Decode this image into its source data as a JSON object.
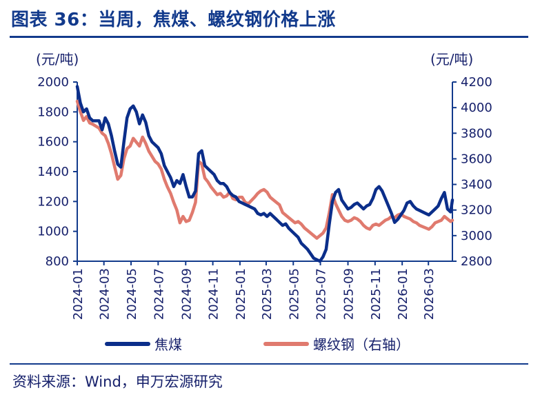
{
  "title": "图表 36：当周，焦煤、螺纹钢价格上涨",
  "units": {
    "left": "(元/吨)",
    "right": "(元/吨)"
  },
  "source": "资料来源：Wind，申万宏源研究",
  "colors": {
    "coking_coal": "#0b2e8a",
    "rebar": "#e07a6e",
    "axis": "#123a8c"
  },
  "chart_data": {
    "type": "line",
    "title": "图表 36：当周，焦煤、螺纹钢价格上涨",
    "x_ticks": [
      "2024-01",
      "2024-03",
      "2024-05",
      "2024-07",
      "2024-09",
      "2024-11",
      "2025-01",
      "2025-03",
      "2025-05",
      "2025-07",
      "2025-09",
      "2025-11",
      "2026-01",
      "2026-03"
    ],
    "x_range": [
      "2024-01-01",
      "2026-04-24"
    ],
    "y_left": {
      "ticks": [
        800,
        1000,
        1200,
        1400,
        1600,
        1800,
        2000
      ],
      "range": [
        800,
        2000
      ],
      "unit": "(元/吨)"
    },
    "y_right": {
      "ticks": [
        2800,
        3000,
        3200,
        3400,
        3600,
        3800,
        4000,
        4200
      ],
      "range": [
        2800,
        4200
      ],
      "unit": "(元/吨)"
    },
    "legend_position": "bottom",
    "grid": false,
    "series": [
      {
        "name": "焦煤",
        "axis": "left",
        "points": [
          [
            "2024-01-01",
            1970
          ],
          [
            "2024-01-08",
            1860
          ],
          [
            "2024-01-15",
            1800
          ],
          [
            "2024-01-22",
            1820
          ],
          [
            "2024-01-29",
            1760
          ],
          [
            "2024-02-05",
            1740
          ],
          [
            "2024-02-19",
            1740
          ],
          [
            "2024-02-26",
            1680
          ],
          [
            "2024-03-04",
            1760
          ],
          [
            "2024-03-11",
            1720
          ],
          [
            "2024-03-18",
            1640
          ],
          [
            "2024-03-25",
            1540
          ],
          [
            "2024-04-01",
            1450
          ],
          [
            "2024-04-08",
            1430
          ],
          [
            "2024-04-15",
            1600
          ],
          [
            "2024-04-22",
            1760
          ],
          [
            "2024-04-29",
            1820
          ],
          [
            "2024-05-06",
            1840
          ],
          [
            "2024-05-13",
            1800
          ],
          [
            "2024-05-20",
            1720
          ],
          [
            "2024-05-27",
            1780
          ],
          [
            "2024-06-03",
            1730
          ],
          [
            "2024-06-10",
            1640
          ],
          [
            "2024-06-17",
            1600
          ],
          [
            "2024-06-24",
            1580
          ],
          [
            "2024-07-01",
            1560
          ],
          [
            "2024-07-08",
            1520
          ],
          [
            "2024-07-15",
            1440
          ],
          [
            "2024-07-22",
            1400
          ],
          [
            "2024-07-29",
            1360
          ],
          [
            "2024-08-05",
            1300
          ],
          [
            "2024-08-12",
            1340
          ],
          [
            "2024-08-19",
            1320
          ],
          [
            "2024-08-26",
            1380
          ],
          [
            "2024-09-02",
            1300
          ],
          [
            "2024-09-09",
            1230
          ],
          [
            "2024-09-16",
            1230
          ],
          [
            "2024-09-23",
            1270
          ],
          [
            "2024-09-30",
            1520
          ],
          [
            "2024-10-07",
            1540
          ],
          [
            "2024-10-14",
            1440
          ],
          [
            "2024-10-21",
            1420
          ],
          [
            "2024-10-28",
            1400
          ],
          [
            "2024-11-04",
            1380
          ],
          [
            "2024-11-11",
            1340
          ],
          [
            "2024-11-18",
            1320
          ],
          [
            "2024-11-25",
            1320
          ],
          [
            "2024-12-02",
            1300
          ],
          [
            "2024-12-09",
            1260
          ],
          [
            "2024-12-16",
            1240
          ],
          [
            "2024-12-23",
            1230
          ],
          [
            "2024-12-30",
            1200
          ],
          [
            "2025-01-06",
            1190
          ],
          [
            "2025-01-13",
            1180
          ],
          [
            "2025-01-20",
            1170
          ],
          [
            "2025-02-03",
            1150
          ],
          [
            "2025-02-10",
            1120
          ],
          [
            "2025-02-17",
            1110
          ],
          [
            "2025-02-24",
            1120
          ],
          [
            "2025-03-03",
            1100
          ],
          [
            "2025-03-10",
            1120
          ],
          [
            "2025-03-17",
            1100
          ],
          [
            "2025-03-24",
            1080
          ],
          [
            "2025-03-31",
            1060
          ],
          [
            "2025-04-07",
            1040
          ],
          [
            "2025-04-14",
            1050
          ],
          [
            "2025-04-21",
            1020
          ],
          [
            "2025-04-28",
            1000
          ],
          [
            "2025-05-05",
            980
          ],
          [
            "2025-05-12",
            960
          ],
          [
            "2025-05-19",
            920
          ],
          [
            "2025-05-26",
            900
          ],
          [
            "2025-06-02",
            880
          ],
          [
            "2025-06-09",
            850
          ],
          [
            "2025-06-16",
            820
          ],
          [
            "2025-06-23",
            810
          ],
          [
            "2025-06-30",
            800
          ],
          [
            "2025-07-07",
            830
          ],
          [
            "2025-07-14",
            880
          ],
          [
            "2025-07-21",
            1050
          ],
          [
            "2025-07-28",
            1200
          ],
          [
            "2025-08-04",
            1260
          ],
          [
            "2025-08-11",
            1280
          ],
          [
            "2025-08-18",
            1210
          ],
          [
            "2025-08-25",
            1180
          ],
          [
            "2025-09-01",
            1150
          ],
          [
            "2025-09-08",
            1160
          ],
          [
            "2025-09-15",
            1180
          ],
          [
            "2025-09-22",
            1190
          ],
          [
            "2025-09-29",
            1170
          ],
          [
            "2025-10-06",
            1150
          ],
          [
            "2025-10-13",
            1170
          ],
          [
            "2025-10-20",
            1180
          ],
          [
            "2025-10-27",
            1220
          ],
          [
            "2025-11-03",
            1280
          ],
          [
            "2025-11-10",
            1300
          ],
          [
            "2025-11-17",
            1270
          ],
          [
            "2025-11-24",
            1220
          ],
          [
            "2025-12-01",
            1170
          ],
          [
            "2025-12-08",
            1120
          ],
          [
            "2025-12-15",
            1060
          ],
          [
            "2025-12-22",
            1080
          ],
          [
            "2025-12-29",
            1110
          ],
          [
            "2026-01-05",
            1140
          ],
          [
            "2026-01-12",
            1190
          ],
          [
            "2026-01-19",
            1200
          ],
          [
            "2026-01-26",
            1170
          ],
          [
            "2026-02-02",
            1150
          ],
          [
            "2026-02-09",
            1140
          ],
          [
            "2026-02-23",
            1120
          ],
          [
            "2026-03-02",
            1110
          ],
          [
            "2026-03-09",
            1130
          ],
          [
            "2026-03-16",
            1150
          ],
          [
            "2026-03-23",
            1170
          ],
          [
            "2026-03-30",
            1220
          ],
          [
            "2026-04-06",
            1260
          ],
          [
            "2026-04-13",
            1150
          ],
          [
            "2026-04-20",
            1130
          ],
          [
            "2026-04-24",
            1210
          ]
        ]
      },
      {
        "name": "螺纹钢（右轴）",
        "axis": "right",
        "points": [
          [
            "2024-01-01",
            4050
          ],
          [
            "2024-01-08",
            3970
          ],
          [
            "2024-01-15",
            3900
          ],
          [
            "2024-01-22",
            3930
          ],
          [
            "2024-01-29",
            3880
          ],
          [
            "2024-02-05",
            3870
          ],
          [
            "2024-02-19",
            3840
          ],
          [
            "2024-02-26",
            3800
          ],
          [
            "2024-03-04",
            3780
          ],
          [
            "2024-03-11",
            3720
          ],
          [
            "2024-03-18",
            3640
          ],
          [
            "2024-03-25",
            3540
          ],
          [
            "2024-04-01",
            3440
          ],
          [
            "2024-04-08",
            3470
          ],
          [
            "2024-04-15",
            3600
          ],
          [
            "2024-04-22",
            3680
          ],
          [
            "2024-04-29",
            3700
          ],
          [
            "2024-05-06",
            3760
          ],
          [
            "2024-05-13",
            3730
          ],
          [
            "2024-05-20",
            3700
          ],
          [
            "2024-05-27",
            3770
          ],
          [
            "2024-06-03",
            3720
          ],
          [
            "2024-06-10",
            3660
          ],
          [
            "2024-06-17",
            3620
          ],
          [
            "2024-06-24",
            3580
          ],
          [
            "2024-07-01",
            3560
          ],
          [
            "2024-07-08",
            3520
          ],
          [
            "2024-07-15",
            3440
          ],
          [
            "2024-07-22",
            3380
          ],
          [
            "2024-07-29",
            3330
          ],
          [
            "2024-08-05",
            3260
          ],
          [
            "2024-08-12",
            3200
          ],
          [
            "2024-08-19",
            3100
          ],
          [
            "2024-08-26",
            3150
          ],
          [
            "2024-09-02",
            3110
          ],
          [
            "2024-09-09",
            3120
          ],
          [
            "2024-09-16",
            3180
          ],
          [
            "2024-09-23",
            3260
          ],
          [
            "2024-09-30",
            3580
          ],
          [
            "2024-10-07",
            3560
          ],
          [
            "2024-10-14",
            3450
          ],
          [
            "2024-10-21",
            3420
          ],
          [
            "2024-10-28",
            3380
          ],
          [
            "2024-11-04",
            3350
          ],
          [
            "2024-11-11",
            3320
          ],
          [
            "2024-11-18",
            3330
          ],
          [
            "2024-11-25",
            3300
          ],
          [
            "2024-12-02",
            3310
          ],
          [
            "2024-12-09",
            3340
          ],
          [
            "2024-12-16",
            3290
          ],
          [
            "2024-12-23",
            3280
          ],
          [
            "2024-12-30",
            3300
          ],
          [
            "2025-01-06",
            3300
          ],
          [
            "2025-01-13",
            3260
          ],
          [
            "2025-01-20",
            3250
          ],
          [
            "2025-02-03",
            3300
          ],
          [
            "2025-02-10",
            3330
          ],
          [
            "2025-02-17",
            3350
          ],
          [
            "2025-02-24",
            3360
          ],
          [
            "2025-03-03",
            3340
          ],
          [
            "2025-03-10",
            3300
          ],
          [
            "2025-03-17",
            3280
          ],
          [
            "2025-03-24",
            3260
          ],
          [
            "2025-03-31",
            3240
          ],
          [
            "2025-04-07",
            3180
          ],
          [
            "2025-04-14",
            3160
          ],
          [
            "2025-04-21",
            3140
          ],
          [
            "2025-04-28",
            3120
          ],
          [
            "2025-05-05",
            3100
          ],
          [
            "2025-05-12",
            3110
          ],
          [
            "2025-05-19",
            3090
          ],
          [
            "2025-05-26",
            3060
          ],
          [
            "2025-06-02",
            3040
          ],
          [
            "2025-06-09",
            3020
          ],
          [
            "2025-06-16",
            3000
          ],
          [
            "2025-06-23",
            2980
          ],
          [
            "2025-06-30",
            3000
          ],
          [
            "2025-07-07",
            3020
          ],
          [
            "2025-07-14",
            3060
          ],
          [
            "2025-07-21",
            3180
          ],
          [
            "2025-07-28",
            3320
          ],
          [
            "2025-08-04",
            3250
          ],
          [
            "2025-08-11",
            3200
          ],
          [
            "2025-08-18",
            3150
          ],
          [
            "2025-08-25",
            3120
          ],
          [
            "2025-09-01",
            3110
          ],
          [
            "2025-09-08",
            3120
          ],
          [
            "2025-09-15",
            3140
          ],
          [
            "2025-09-22",
            3130
          ],
          [
            "2025-09-29",
            3110
          ],
          [
            "2025-10-06",
            3080
          ],
          [
            "2025-10-13",
            3060
          ],
          [
            "2025-10-20",
            3050
          ],
          [
            "2025-10-27",
            3080
          ],
          [
            "2025-11-03",
            3090
          ],
          [
            "2025-11-10",
            3080
          ],
          [
            "2025-11-17",
            3100
          ],
          [
            "2025-11-24",
            3120
          ],
          [
            "2025-12-01",
            3130
          ],
          [
            "2025-12-08",
            3150
          ],
          [
            "2025-12-15",
            3140
          ],
          [
            "2025-12-22",
            3160
          ],
          [
            "2025-12-29",
            3170
          ],
          [
            "2026-01-05",
            3150
          ],
          [
            "2026-01-12",
            3140
          ],
          [
            "2026-01-19",
            3130
          ],
          [
            "2026-01-26",
            3110
          ],
          [
            "2026-02-02",
            3100
          ],
          [
            "2026-02-09",
            3080
          ],
          [
            "2026-02-23",
            3060
          ],
          [
            "2026-03-02",
            3050
          ],
          [
            "2026-03-09",
            3070
          ],
          [
            "2026-03-16",
            3100
          ],
          [
            "2026-03-23",
            3110
          ],
          [
            "2026-03-30",
            3120
          ],
          [
            "2026-04-06",
            3150
          ],
          [
            "2026-04-13",
            3130
          ],
          [
            "2026-04-20",
            3110
          ],
          [
            "2026-04-24",
            3120
          ]
        ]
      }
    ]
  }
}
